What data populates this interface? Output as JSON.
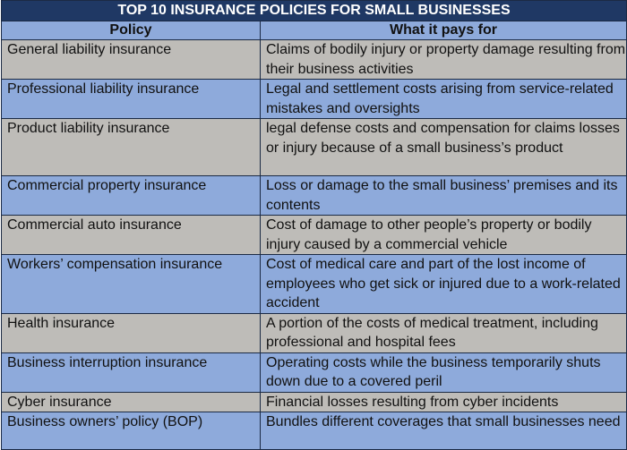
{
  "title": "TOP 10 INSURANCE POLICIES FOR SMALL BUSINESSES",
  "columns": [
    "Policy",
    "What it pays for"
  ],
  "colors": {
    "title_bg": "#1f3864",
    "header_bg": "#8eaadb",
    "row_gray": "#bebcb8",
    "row_blue": "#8eaadb"
  },
  "rows": [
    {
      "policy": "General liability insurance",
      "pays_for": "Claims of bodily injury or property damage resulting from their business activities"
    },
    {
      "policy": "Professional liability insurance",
      "pays_for": "Legal and settlement costs arising from service-related mistakes and oversights"
    },
    {
      "policy": "Product liability insurance",
      "pays_for": "legal defense costs and compensation for claims losses or injury because of a small business’s product"
    },
    {
      "policy": "Commercial property insurance",
      "pays_for": "Loss or damage to the small business’ premises and its contents"
    },
    {
      "policy": "Commercial auto insurance",
      "pays_for": "Cost of damage to other people’s property or bodily injury caused by a commercial vehicle"
    },
    {
      "policy": "Workers’ compensation insurance",
      "pays_for": "Cost of medical care and part of the lost income of employees who get sick or injured due to a work-related accident"
    },
    {
      "policy": "Health insurance",
      "pays_for": "A portion of the costs of medical treatment, including professional and hospital fees"
    },
    {
      "policy": "Business interruption insurance",
      "pays_for": "Operating costs while the business temporarily shuts down due to a covered peril"
    },
    {
      "policy": "Cyber insurance",
      "pays_for": "Financial losses resulting from cyber incidents"
    },
    {
      "policy": "Business owners’ policy (BOP)",
      "pays_for": "Bundles different coverages that small businesses need"
    }
  ]
}
